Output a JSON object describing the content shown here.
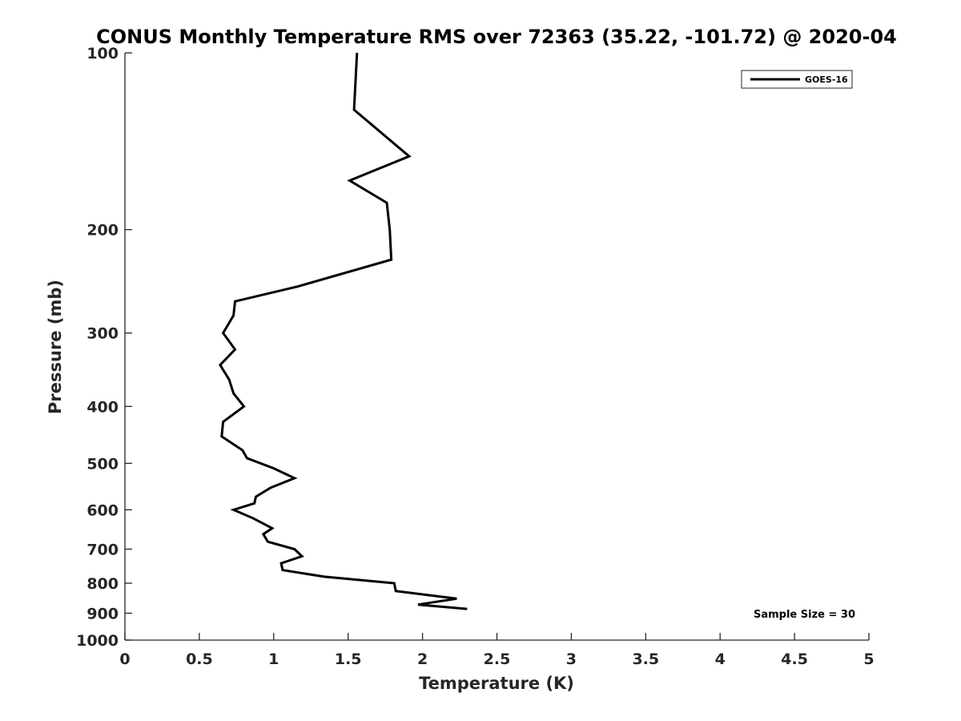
{
  "chart_data": {
    "type": "line",
    "title": "CONUS Monthly Temperature RMS over 72363 (35.22, -101.72) @ 2020-04",
    "xlabel": "Temperature (K)",
    "ylabel": "Pressure (mb)",
    "xlim": [
      0,
      5
    ],
    "ylim": [
      100,
      1000
    ],
    "y_scale": "log",
    "y_reversed": true,
    "x_ticks": [
      "0",
      "0.5",
      "1",
      "1.5",
      "2",
      "2.5",
      "3",
      "3.5",
      "4",
      "4.5",
      "5"
    ],
    "y_ticks": [
      "100",
      "200",
      "300",
      "400",
      "500",
      "600",
      "700",
      "800",
      "900",
      "1000"
    ],
    "grid": false,
    "legend_position": "top-right",
    "annotation": "Sample Size = 30",
    "line_color": "#000000",
    "series": [
      {
        "name": "GOES-16",
        "points": [
          {
            "x": 1.56,
            "y": 100
          },
          {
            "x": 1.54,
            "y": 125
          },
          {
            "x": 1.91,
            "y": 150
          },
          {
            "x": 1.51,
            "y": 165
          },
          {
            "x": 1.76,
            "y": 180
          },
          {
            "x": 1.78,
            "y": 200
          },
          {
            "x": 1.79,
            "y": 225
          },
          {
            "x": 1.16,
            "y": 250
          },
          {
            "x": 0.74,
            "y": 265
          },
          {
            "x": 0.73,
            "y": 280
          },
          {
            "x": 0.66,
            "y": 300
          },
          {
            "x": 0.74,
            "y": 320
          },
          {
            "x": 0.64,
            "y": 340
          },
          {
            "x": 0.7,
            "y": 360
          },
          {
            "x": 0.73,
            "y": 380
          },
          {
            "x": 0.8,
            "y": 400
          },
          {
            "x": 0.66,
            "y": 425
          },
          {
            "x": 0.65,
            "y": 450
          },
          {
            "x": 0.79,
            "y": 475
          },
          {
            "x": 0.82,
            "y": 490
          },
          {
            "x": 1.0,
            "y": 510
          },
          {
            "x": 1.14,
            "y": 530
          },
          {
            "x": 0.98,
            "y": 550
          },
          {
            "x": 0.88,
            "y": 570
          },
          {
            "x": 0.87,
            "y": 585
          },
          {
            "x": 0.73,
            "y": 600
          },
          {
            "x": 0.86,
            "y": 620
          },
          {
            "x": 0.99,
            "y": 645
          },
          {
            "x": 0.93,
            "y": 660
          },
          {
            "x": 0.96,
            "y": 680
          },
          {
            "x": 1.14,
            "y": 700
          },
          {
            "x": 1.19,
            "y": 720
          },
          {
            "x": 1.05,
            "y": 740
          },
          {
            "x": 1.06,
            "y": 760
          },
          {
            "x": 1.34,
            "y": 780
          },
          {
            "x": 1.81,
            "y": 800
          },
          {
            "x": 1.82,
            "y": 825
          },
          {
            "x": 2.23,
            "y": 850
          },
          {
            "x": 1.97,
            "y": 870
          },
          {
            "x": 2.3,
            "y": 885
          }
        ]
      }
    ]
  }
}
